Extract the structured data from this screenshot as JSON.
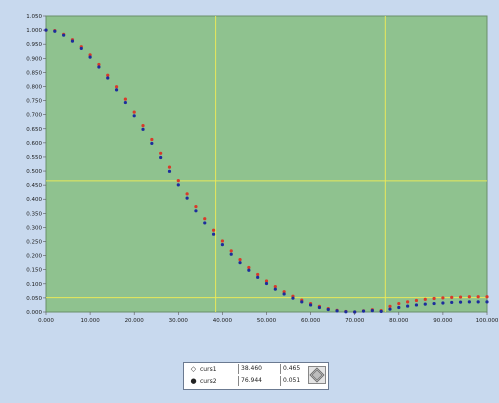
{
  "colors": {
    "frame_bg": "#c8d9ee",
    "plot_bg": "#8fc28f",
    "cursor_line": "#e8e85a",
    "series_red": "#d83a2a",
    "series_blue": "#1c2c9c"
  },
  "chart_data": {
    "type": "scatter",
    "xlim": [
      0,
      100
    ],
    "ylim": [
      0,
      1.05
    ],
    "x_ticks": [
      "0.000",
      "10.000",
      "20.000",
      "30.000",
      "40.000",
      "50.000",
      "60.000",
      "70.000",
      "80.000",
      "90.000",
      "100.000"
    ],
    "y_ticks": [
      "0.000",
      "0.050",
      "0.100",
      "0.150",
      "0.200",
      "0.250",
      "0.300",
      "0.350",
      "0.400",
      "0.450",
      "0.500",
      "0.550",
      "0.600",
      "0.650",
      "0.700",
      "0.750",
      "0.800",
      "0.850",
      "0.900",
      "0.950",
      "1.000",
      "1.050"
    ],
    "grid": false,
    "series": [
      {
        "color": "#d83a2a",
        "x": [
          0,
          2,
          4,
          6,
          8,
          10,
          12,
          14,
          16,
          18,
          20,
          22,
          24,
          26,
          28,
          30,
          32,
          34,
          36,
          38,
          40,
          42,
          44,
          46,
          48,
          50,
          52,
          54,
          56,
          58,
          60,
          62,
          64,
          66,
          68,
          70,
          72,
          74,
          76,
          78,
          80,
          82,
          84,
          86,
          88,
          90,
          92,
          94,
          96,
          98,
          100
        ],
        "values": [
          1.0,
          0.998,
          0.985,
          0.966,
          0.941,
          0.912,
          0.878,
          0.84,
          0.799,
          0.755,
          0.709,
          0.661,
          0.612,
          0.563,
          0.514,
          0.466,
          0.419,
          0.374,
          0.331,
          0.29,
          0.252,
          0.217,
          0.186,
          0.158,
          0.133,
          0.11,
          0.09,
          0.072,
          0.056,
          0.042,
          0.03,
          0.02,
          0.012,
          0.006,
          0.002,
          0.0,
          0.004,
          0.008,
          0.005,
          0.02,
          0.03,
          0.036,
          0.041,
          0.045,
          0.048,
          0.05,
          0.052,
          0.053,
          0.054,
          0.054,
          0.054
        ]
      },
      {
        "color": "#1c2c9c",
        "x": [
          0,
          2,
          4,
          6,
          8,
          10,
          12,
          14,
          16,
          18,
          20,
          22,
          24,
          26,
          28,
          30,
          32,
          34,
          36,
          38,
          40,
          42,
          44,
          46,
          48,
          50,
          52,
          54,
          56,
          58,
          60,
          62,
          64,
          66,
          68,
          70,
          72,
          74,
          76,
          78,
          80,
          82,
          84,
          86,
          88,
          90,
          92,
          94,
          96,
          98,
          100
        ],
        "values": [
          1.0,
          0.996,
          0.982,
          0.961,
          0.935,
          0.904,
          0.869,
          0.83,
          0.788,
          0.743,
          0.696,
          0.648,
          0.598,
          0.548,
          0.499,
          0.451,
          0.404,
          0.359,
          0.316,
          0.276,
          0.239,
          0.205,
          0.175,
          0.148,
          0.123,
          0.101,
          0.081,
          0.064,
          0.049,
          0.036,
          0.025,
          0.016,
          0.009,
          0.004,
          0.001,
          0.0,
          0.003,
          0.005,
          0.002,
          0.01,
          0.016,
          0.021,
          0.025,
          0.028,
          0.03,
          0.032,
          0.034,
          0.035,
          0.036,
          0.036,
          0.036
        ]
      }
    ],
    "cursors": [
      {
        "name": "curs1",
        "x": 38.46,
        "y": 0.465,
        "x_text": "38.460",
        "y_text": "0.465",
        "marker": "◇"
      },
      {
        "name": "curs2",
        "x": 76.944,
        "y": 0.051,
        "x_text": "76.944",
        "y_text": "0.051",
        "marker": "●"
      }
    ]
  }
}
